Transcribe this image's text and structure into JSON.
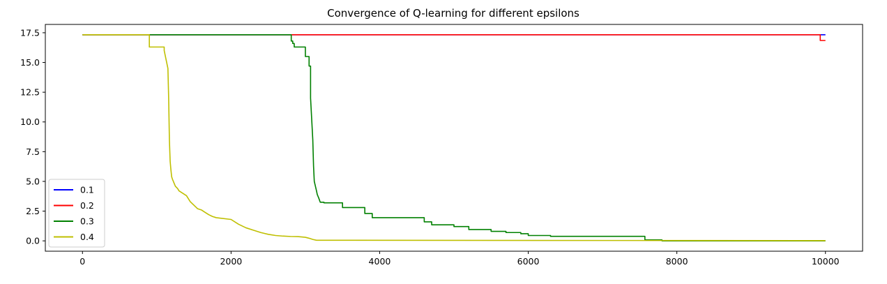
{
  "chart_data": {
    "type": "line",
    "title": "Convergence of Q-learning for different epsilons",
    "xlabel": "",
    "ylabel": "",
    "xlim": [
      -500,
      10500
    ],
    "ylim": [
      -0.87,
      18.2
    ],
    "xticks": [
      0,
      2000,
      4000,
      6000,
      8000,
      10000
    ],
    "xtick_labels": [
      "0",
      "2000",
      "4000",
      "6000",
      "8000",
      "10000"
    ],
    "yticks": [
      0.0,
      2.5,
      5.0,
      7.5,
      10.0,
      12.5,
      15.0,
      17.5
    ],
    "ytick_labels": [
      "0.0",
      "2.5",
      "5.0",
      "7.5",
      "10.0",
      "12.5",
      "15.0",
      "17.5"
    ],
    "grid": false,
    "legend_position": "lower-left",
    "series": [
      {
        "name": "0.1",
        "color": "#0000ff",
        "x": [
          0,
          10000
        ],
        "y": [
          17.33,
          17.33
        ]
      },
      {
        "name": "0.2",
        "color": "#ff0000",
        "x": [
          0,
          9930,
          9930,
          10000
        ],
        "y": [
          17.33,
          17.33,
          16.85,
          16.85
        ]
      },
      {
        "name": "0.3",
        "color": "#008000",
        "x": [
          0,
          2810,
          2810,
          2830,
          2830,
          2850,
          2850,
          3000,
          3000,
          3050,
          3050,
          3070,
          3070,
          3100,
          3110,
          3120,
          3150,
          3160,
          3180,
          3200,
          3250,
          3250,
          3500,
          3500,
          3800,
          3800,
          3900,
          3900,
          4600,
          4600,
          4700,
          4700,
          5000,
          5000,
          5200,
          5200,
          5500,
          5500,
          5700,
          5700,
          5900,
          5900,
          6000,
          6000,
          6300,
          6300,
          7570,
          7570,
          7800,
          7800,
          10000
        ],
        "y": [
          17.33,
          17.33,
          16.8,
          16.8,
          16.6,
          16.6,
          16.3,
          16.3,
          15.5,
          15.5,
          14.7,
          14.7,
          12.0,
          8.5,
          6.3,
          5.0,
          4.2,
          3.9,
          3.6,
          3.25,
          3.25,
          3.2,
          3.2,
          2.8,
          2.8,
          2.3,
          2.3,
          1.95,
          1.95,
          1.6,
          1.6,
          1.35,
          1.35,
          1.2,
          1.2,
          0.95,
          0.95,
          0.8,
          0.8,
          0.7,
          0.7,
          0.6,
          0.6,
          0.45,
          0.45,
          0.38,
          0.38,
          0.08,
          0.08,
          0.0,
          0.0
        ]
      },
      {
        "name": "0.4",
        "color": "#bfbf00",
        "x": [
          0,
          900,
          900,
          1100,
          1100,
          1150,
          1160,
          1170,
          1180,
          1190,
          1200,
          1210,
          1250,
          1280,
          1300,
          1400,
          1450,
          1500,
          1550,
          1600,
          1650,
          1700,
          1750,
          1800,
          2000,
          2100,
          2200,
          2300,
          2400,
          2500,
          2600,
          2700,
          2800,
          2900,
          3000,
          3050,
          3100,
          3150,
          10000
        ],
        "y": [
          17.33,
          17.33,
          16.3,
          16.3,
          16.0,
          14.5,
          12.0,
          8.5,
          6.7,
          6.0,
          5.4,
          5.2,
          4.6,
          4.4,
          4.2,
          3.8,
          3.3,
          3.0,
          2.7,
          2.6,
          2.4,
          2.2,
          2.05,
          1.95,
          1.8,
          1.4,
          1.1,
          0.9,
          0.7,
          0.55,
          0.45,
          0.4,
          0.37,
          0.36,
          0.3,
          0.22,
          0.12,
          0.05,
          0.02
        ]
      }
    ]
  }
}
